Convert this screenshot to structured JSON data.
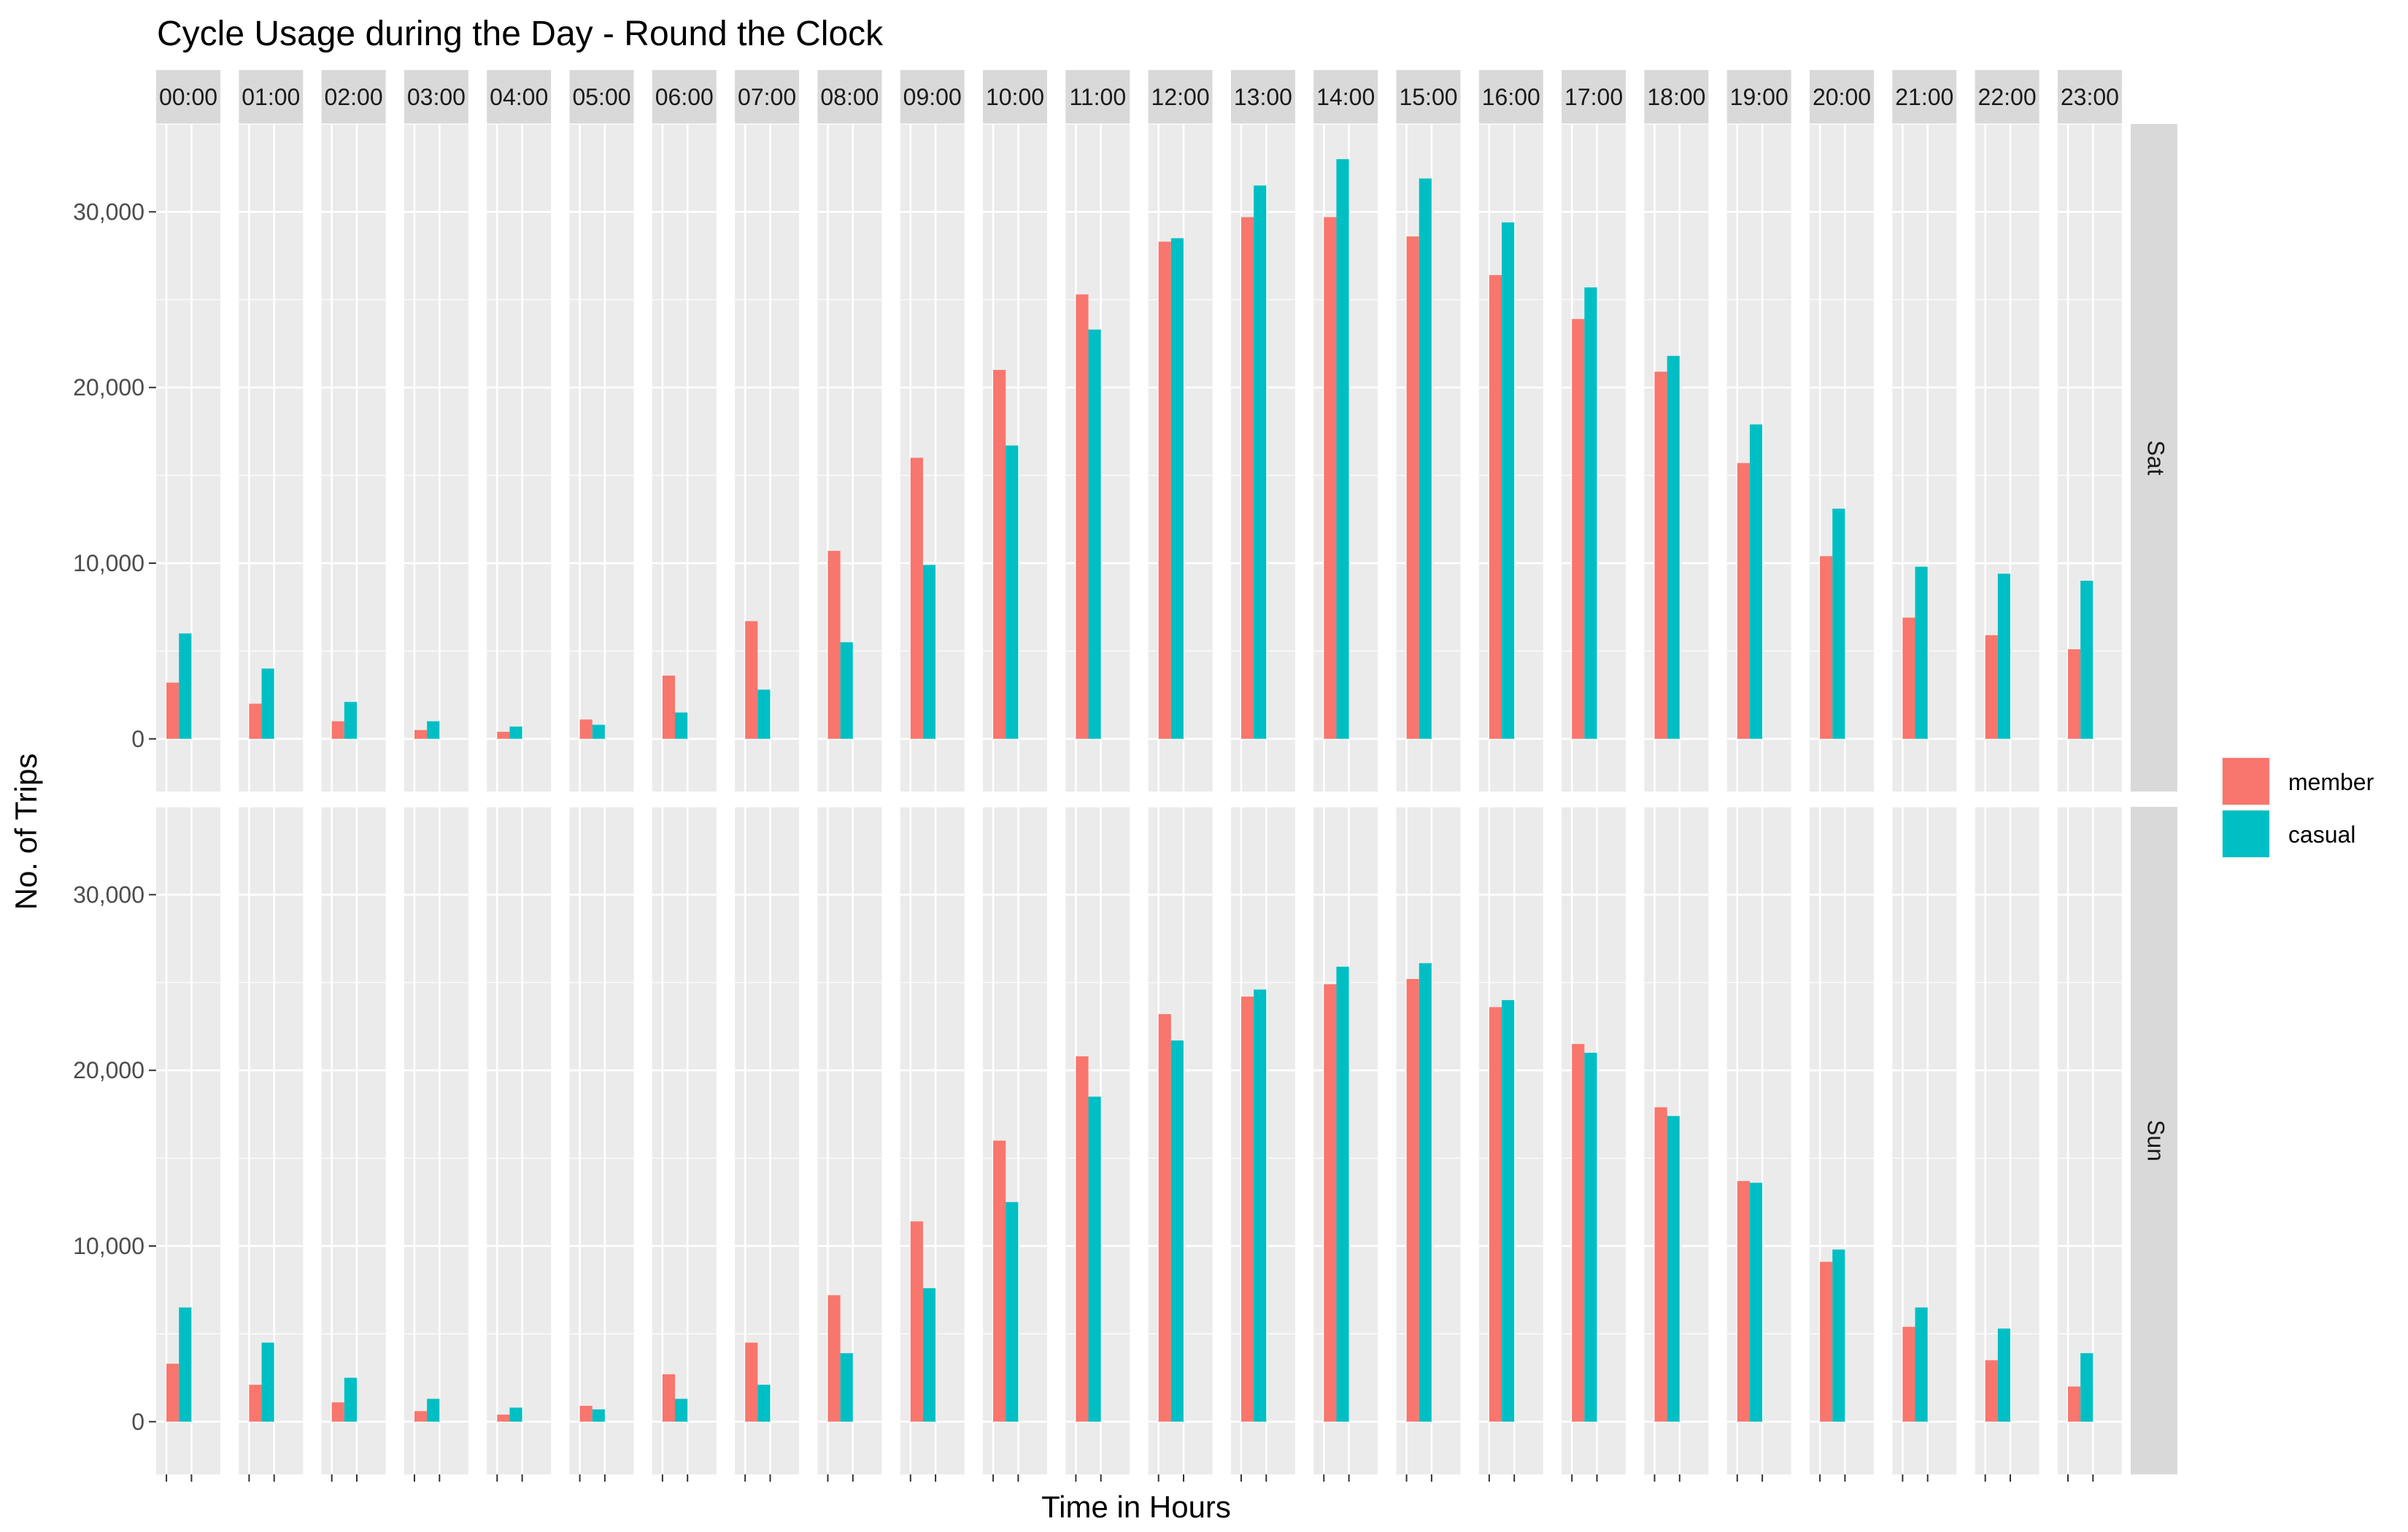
{
  "chart_data": {
    "type": "bar",
    "title": "Cycle Usage during the Day - Round the Clock",
    "xlabel": "Time in Hours",
    "ylabel": "No. of Trips",
    "ylim": [
      -3000,
      35000
    ],
    "yticks": [
      0,
      10000,
      20000,
      30000
    ],
    "ytick_labels": [
      "0",
      "10,000",
      "20,000",
      "30,000"
    ],
    "grid": true,
    "legend_position": "right",
    "hours": [
      "00:00",
      "01:00",
      "02:00",
      "03:00",
      "04:00",
      "05:00",
      "06:00",
      "07:00",
      "08:00",
      "09:00",
      "10:00",
      "11:00",
      "12:00",
      "13:00",
      "14:00",
      "15:00",
      "16:00",
      "17:00",
      "18:00",
      "19:00",
      "20:00",
      "21:00",
      "22:00",
      "23:00"
    ],
    "series": [
      {
        "name": "member",
        "color": "#F8766D"
      },
      {
        "name": "casual",
        "color": "#00BFC4"
      }
    ],
    "panels": [
      {
        "label": "Sat",
        "member": [
          3200,
          2000,
          1000,
          500,
          400,
          1100,
          3600,
          6700,
          10700,
          16000,
          21000,
          25300,
          28300,
          29700,
          29700,
          28600,
          26400,
          23900,
          20900,
          15700,
          10400,
          6900,
          5900,
          5100
        ],
        "casual": [
          6000,
          4000,
          2100,
          1000,
          700,
          800,
          1500,
          2800,
          5500,
          9900,
          16700,
          23300,
          28500,
          31500,
          33000,
          31900,
          29400,
          25700,
          21800,
          17900,
          13100,
          9800,
          9400,
          9000
        ]
      },
      {
        "label": "Sun",
        "member": [
          3300,
          2100,
          1100,
          600,
          400,
          900,
          2700,
          4500,
          7200,
          11400,
          16000,
          20800,
          23200,
          24200,
          24900,
          25200,
          23600,
          21500,
          17900,
          13700,
          9100,
          5400,
          3500,
          2000
        ],
        "casual": [
          6500,
          4500,
          2500,
          1300,
          800,
          700,
          1300,
          2100,
          3900,
          7600,
          12500,
          18500,
          21700,
          24600,
          25900,
          26100,
          24000,
          21000,
          17400,
          13600,
          9800,
          6500,
          5300,
          3900
        ]
      }
    ]
  }
}
